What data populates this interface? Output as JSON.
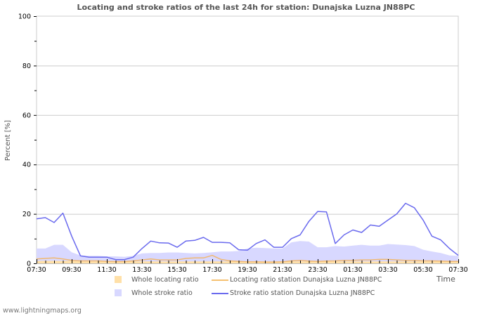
{
  "chart_data": {
    "type": "line",
    "title": "Locating and stroke ratios of the last 24h for station: Dunajska Luzna JN88PC",
    "xlabel": "Time",
    "ylabel": "Percent   [%]",
    "ylim": [
      0,
      100
    ],
    "yticks": [
      0,
      20,
      40,
      60,
      80,
      100
    ],
    "grid": true,
    "legend_position": "bottom",
    "x": [
      "07:30",
      "08:00",
      "08:30",
      "09:00",
      "09:30",
      "10:00",
      "10:30",
      "11:00",
      "11:30",
      "12:00",
      "12:30",
      "13:00",
      "13:30",
      "14:00",
      "14:30",
      "15:00",
      "15:30",
      "16:00",
      "16:30",
      "17:00",
      "17:30",
      "18:00",
      "18:30",
      "19:00",
      "19:30",
      "20:00",
      "20:30",
      "21:00",
      "21:30",
      "22:00",
      "22:30",
      "23:00",
      "23:30",
      "00:00",
      "00:30",
      "01:00",
      "01:30",
      "02:00",
      "02:30",
      "03:00",
      "03:30",
      "04:00",
      "04:30",
      "05:00",
      "05:30",
      "06:00",
      "06:30",
      "07:00",
      "07:30"
    ],
    "xtick_labels": [
      "07:30",
      "09:30",
      "11:30",
      "13:30",
      "15:30",
      "17:30",
      "19:30",
      "21:30",
      "23:30",
      "01:30",
      "03:30",
      "05:30",
      "07:30"
    ],
    "series": [
      {
        "name": "Whole locating ratio",
        "kind": "area",
        "color": "#ffe0a8",
        "values": [
          1,
          1,
          1,
          1,
          1,
          0.8,
          0.8,
          0.8,
          0.8,
          0.8,
          0.8,
          0.8,
          0.8,
          0.8,
          0.8,
          0.8,
          0.8,
          0.8,
          0.8,
          0.8,
          0.8,
          0.8,
          0.8,
          0.8,
          0.8,
          0.8,
          0.8,
          0.8,
          0.8,
          0.8,
          0.8,
          0.8,
          0.8,
          0.8,
          0.8,
          0.8,
          0.8,
          0.8,
          0.8,
          0.8,
          0.8,
          0.8,
          0.8,
          0.8,
          0.8,
          0.8,
          0.8,
          0.8,
          0.8
        ]
      },
      {
        "name": "Whole stroke ratio",
        "kind": "area",
        "color": "#d8d8ff",
        "values": [
          6,
          6,
          7.5,
          7.5,
          4.5,
          3.2,
          3,
          3,
          2.8,
          2.8,
          2.6,
          3,
          4,
          4.2,
          4.2,
          4.4,
          4.4,
          4.2,
          4,
          4.2,
          4.5,
          4.8,
          4.8,
          5,
          6,
          6.3,
          6.2,
          6,
          6,
          8.5,
          9,
          8.8,
          6.5,
          6.5,
          7,
          6.8,
          7.2,
          7.5,
          7.2,
          7.2,
          7.8,
          7.6,
          7.4,
          7,
          5.5,
          4.8,
          4.2,
          3.2,
          3
        ]
      },
      {
        "name": "Locating ratio station Dunajska Luzna JN88PC",
        "kind": "line",
        "color": "#f0b870",
        "values": [
          1.8,
          2,
          2.2,
          1.8,
          1.2,
          1,
          1,
          1,
          0.8,
          0.7,
          0.7,
          1,
          1.4,
          1.8,
          1.4,
          1.4,
          1.4,
          2,
          2.2,
          2.2,
          3.2,
          1.6,
          1,
          0.8,
          0.6,
          0.6,
          0.5,
          0.5,
          0.6,
          1,
          1.2,
          0.9,
          0.8,
          0.9,
          1,
          1.2,
          1.2,
          1.4,
          1.4,
          1.6,
          1.6,
          1.4,
          1.2,
          1.2,
          1,
          1,
          0.9,
          0.8,
          0.8
        ]
      },
      {
        "name": "Stroke ratio station Dunajska Luzna JN88PC",
        "kind": "line",
        "color": "#6a6aee",
        "values": [
          18,
          18.5,
          16.5,
          20.3,
          11,
          3,
          2.5,
          2.5,
          2.5,
          1.5,
          1.5,
          2.5,
          6,
          9,
          8.3,
          8.2,
          6.5,
          9,
          9.3,
          10.5,
          8.5,
          8.5,
          8.3,
          5.5,
          5.3,
          8,
          9.5,
          6.5,
          6.5,
          10,
          11.5,
          17,
          21,
          20.8,
          8,
          11.5,
          13.5,
          12.5,
          15.5,
          15,
          17.5,
          20,
          24.3,
          22.5,
          17.5,
          11,
          9.5,
          6,
          3.2
        ]
      }
    ]
  },
  "legend": {
    "items": [
      {
        "label": "Whole locating ratio"
      },
      {
        "label": "Locating ratio station Dunajska Luzna JN88PC"
      },
      {
        "label": "Whole stroke ratio"
      },
      {
        "label": "Stroke ratio station Dunajska Luzna JN88PC"
      }
    ]
  },
  "footer": "www.lightningmaps.org"
}
